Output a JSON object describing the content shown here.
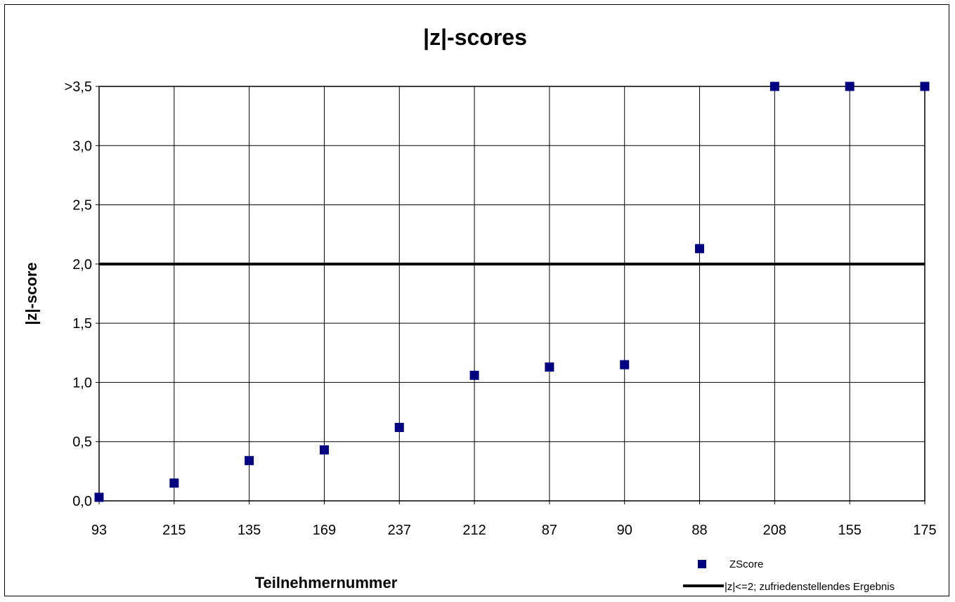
{
  "chart_data": {
    "type": "scatter",
    "title": "|z|-scores",
    "xlabel": "Teilnehmernummer",
    "ylabel": "|z|-score",
    "categories": [
      "93",
      "215",
      "135",
      "169",
      "237",
      "212",
      "87",
      "90",
      "88",
      "208",
      "155",
      "175"
    ],
    "ylim": [
      0,
      3.5
    ],
    "yticks": [
      0,
      0.5,
      1.0,
      1.5,
      2.0,
      2.5,
      3.0,
      3.5
    ],
    "ytick_labels": [
      "0,0",
      "0,5",
      "1,0",
      "1,5",
      "2,0",
      "2,5",
      "3,0",
      ">3,5"
    ],
    "grid": true,
    "legend_position": "bottom-right",
    "series": [
      {
        "name": "ZScore",
        "marker": "square",
        "color": "#000080",
        "values": [
          0.03,
          0.15,
          0.34,
          0.43,
          0.62,
          1.06,
          1.13,
          1.15,
          2.13,
          3.5,
          3.5,
          3.5
        ]
      },
      {
        "name": "|z|<=2; zufriedenstellendes Ergebnis",
        "type": "line",
        "color": "#000000",
        "y": 2.0
      }
    ]
  }
}
